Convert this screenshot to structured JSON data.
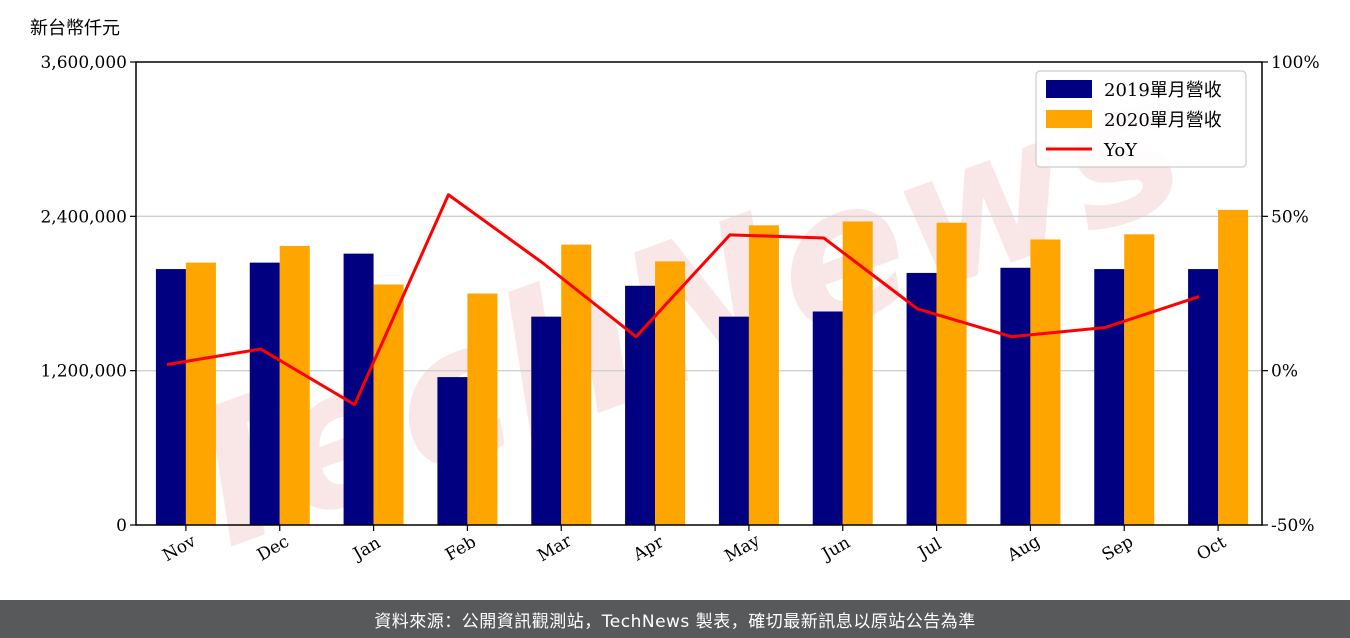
{
  "chart_data": {
    "type": "bar",
    "ylabel": "新台幣仟元",
    "categories": [
      "Nov",
      "Dec",
      "Jan",
      "Feb",
      "Mar",
      "Apr",
      "May",
      "Jun",
      "Jul",
      "Aug",
      "Sep",
      "Oct"
    ],
    "ylim": [
      0,
      3600000
    ],
    "y_ticks": [
      0,
      1200000,
      2400000,
      3600000
    ],
    "y_tick_labels": [
      "0",
      "1,200,000",
      "2,400,000",
      "3,600,000"
    ],
    "y2lim": [
      -50,
      100
    ],
    "y2_ticks": [
      -50,
      0,
      50,
      100
    ],
    "y2_tick_labels": [
      "-50%",
      "0%",
      "50%",
      "100%"
    ],
    "grid": "horizontal",
    "legend_placement": "top-right",
    "series": [
      {
        "name": "2019單月營收",
        "type": "bar",
        "color": "#000080",
        "values": [
          1990000,
          2040000,
          2110000,
          1150000,
          1620000,
          1860000,
          1620000,
          1660000,
          1960000,
          2000000,
          1990000,
          1990000
        ]
      },
      {
        "name": "2020單月營收",
        "type": "bar",
        "color": "#ffa500",
        "values": [
          2040000,
          2170000,
          1870000,
          1800000,
          2180000,
          2050000,
          2330000,
          2360000,
          2350000,
          2220000,
          2260000,
          2450000
        ]
      },
      {
        "name": "YoY",
        "type": "line",
        "axis": "right",
        "color": "#ff0000",
        "values": [
          2,
          7,
          -11,
          57,
          35,
          11,
          44,
          43,
          20,
          11,
          14,
          24
        ]
      }
    ]
  },
  "watermark": "TechNews",
  "footer": {
    "source_text": "資料來源：公開資訊觀測站，TechNews 製表，確切最新訊息以原站公告為準"
  }
}
